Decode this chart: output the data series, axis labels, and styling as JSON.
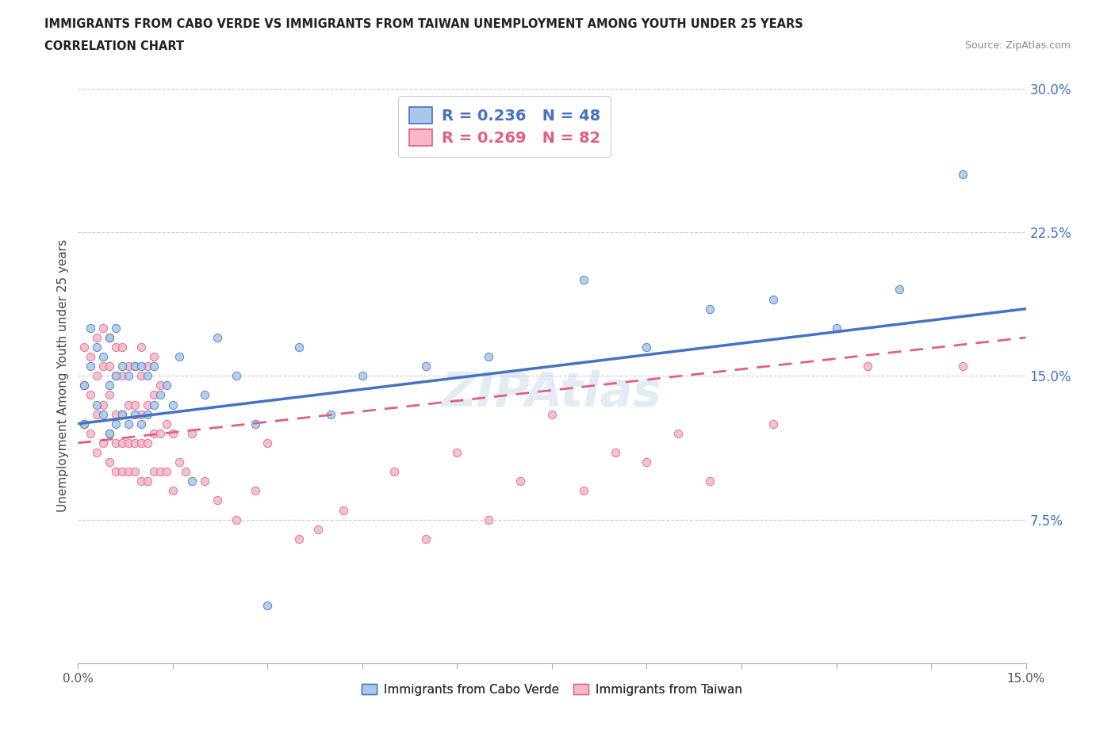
{
  "title_line1": "IMMIGRANTS FROM CABO VERDE VS IMMIGRANTS FROM TAIWAN UNEMPLOYMENT AMONG YOUTH UNDER 25 YEARS",
  "title_line2": "CORRELATION CHART",
  "source_text": "Source: ZipAtlas.com",
  "ylabel": "Unemployment Among Youth under 25 years",
  "xlim": [
    0.0,
    0.15
  ],
  "ylim": [
    0.0,
    0.3
  ],
  "ytick_right_labels": [
    "",
    "7.5%",
    "15.0%",
    "22.5%",
    "30.0%"
  ],
  "ytick_right_values": [
    0.0,
    0.075,
    0.15,
    0.225,
    0.3
  ],
  "color_blue": "#a8c8e8",
  "color_pink": "#f4b8c8",
  "line_blue": "#4472c4",
  "line_pink": "#e06080",
  "r_blue": 0.236,
  "n_blue": 48,
  "r_pink": 0.269,
  "n_pink": 82,
  "legend_label_blue": "Immigrants from Cabo Verde",
  "legend_label_pink": "Immigrants from Taiwan",
  "watermark": "ZIPAtlas",
  "cabo_verde_x": [
    0.001,
    0.001,
    0.002,
    0.002,
    0.003,
    0.003,
    0.004,
    0.004,
    0.005,
    0.005,
    0.005,
    0.006,
    0.006,
    0.006,
    0.007,
    0.007,
    0.008,
    0.008,
    0.009,
    0.009,
    0.01,
    0.01,
    0.011,
    0.011,
    0.012,
    0.012,
    0.013,
    0.014,
    0.015,
    0.016,
    0.018,
    0.02,
    0.022,
    0.025,
    0.028,
    0.03,
    0.035,
    0.04,
    0.045,
    0.055,
    0.065,
    0.08,
    0.09,
    0.1,
    0.11,
    0.12,
    0.13,
    0.14
  ],
  "cabo_verde_y": [
    0.125,
    0.145,
    0.155,
    0.175,
    0.135,
    0.165,
    0.13,
    0.16,
    0.12,
    0.145,
    0.17,
    0.125,
    0.15,
    0.175,
    0.13,
    0.155,
    0.125,
    0.15,
    0.13,
    0.155,
    0.125,
    0.155,
    0.13,
    0.15,
    0.135,
    0.155,
    0.14,
    0.145,
    0.135,
    0.16,
    0.095,
    0.14,
    0.17,
    0.15,
    0.125,
    0.03,
    0.165,
    0.13,
    0.15,
    0.155,
    0.16,
    0.2,
    0.165,
    0.185,
    0.19,
    0.175,
    0.195,
    0.255
  ],
  "taiwan_x": [
    0.001,
    0.001,
    0.001,
    0.002,
    0.002,
    0.002,
    0.003,
    0.003,
    0.003,
    0.003,
    0.004,
    0.004,
    0.004,
    0.004,
    0.005,
    0.005,
    0.005,
    0.005,
    0.005,
    0.006,
    0.006,
    0.006,
    0.006,
    0.006,
    0.007,
    0.007,
    0.007,
    0.007,
    0.007,
    0.008,
    0.008,
    0.008,
    0.008,
    0.009,
    0.009,
    0.009,
    0.009,
    0.01,
    0.01,
    0.01,
    0.01,
    0.01,
    0.011,
    0.011,
    0.011,
    0.011,
    0.012,
    0.012,
    0.012,
    0.012,
    0.013,
    0.013,
    0.013,
    0.014,
    0.014,
    0.015,
    0.015,
    0.016,
    0.017,
    0.018,
    0.02,
    0.022,
    0.025,
    0.028,
    0.03,
    0.035,
    0.038,
    0.042,
    0.05,
    0.055,
    0.06,
    0.065,
    0.07,
    0.075,
    0.08,
    0.085,
    0.09,
    0.095,
    0.1,
    0.11,
    0.125,
    0.14
  ],
  "taiwan_y": [
    0.125,
    0.145,
    0.165,
    0.12,
    0.14,
    0.16,
    0.11,
    0.13,
    0.15,
    0.17,
    0.115,
    0.135,
    0.155,
    0.175,
    0.105,
    0.12,
    0.14,
    0.155,
    0.17,
    0.1,
    0.115,
    0.13,
    0.15,
    0.165,
    0.1,
    0.115,
    0.13,
    0.15,
    0.165,
    0.1,
    0.115,
    0.135,
    0.155,
    0.1,
    0.115,
    0.135,
    0.155,
    0.095,
    0.115,
    0.13,
    0.15,
    0.165,
    0.095,
    0.115,
    0.135,
    0.155,
    0.1,
    0.12,
    0.14,
    0.16,
    0.1,
    0.12,
    0.145,
    0.1,
    0.125,
    0.09,
    0.12,
    0.105,
    0.1,
    0.12,
    0.095,
    0.085,
    0.075,
    0.09,
    0.115,
    0.065,
    0.07,
    0.08,
    0.1,
    0.065,
    0.11,
    0.075,
    0.095,
    0.13,
    0.09,
    0.11,
    0.105,
    0.12,
    0.095,
    0.125,
    0.155,
    0.155
  ],
  "blue_line_x0": 0.0,
  "blue_line_y0": 0.125,
  "blue_line_x1": 0.15,
  "blue_line_y1": 0.185,
  "pink_line_x0": 0.0,
  "pink_line_y0": 0.115,
  "pink_line_x1": 0.15,
  "pink_line_y1": 0.17
}
